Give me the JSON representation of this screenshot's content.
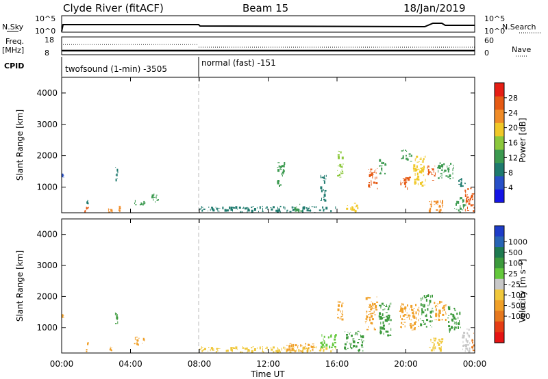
{
  "header": {
    "station": "Clyde River (fitACF)",
    "beam": "Beam 15",
    "date": "18/Jan/2019"
  },
  "status_panel": {
    "nsky_label": "N.Sky",
    "nsky_ticks": [
      "10^5",
      "10^0"
    ],
    "nsearch_label": "N.Search",
    "nsearch_ticks": [
      "10^5",
      "10^0"
    ],
    "freq_label": "Freq.",
    "freq_unit": "[MHz]",
    "freq_ticks": [
      "18",
      "8"
    ],
    "nave_label": "Nave",
    "nave_ticks": [
      "60",
      "0"
    ],
    "cpid_label": "CPID",
    "cpid_modes": [
      {
        "name": "twofsound (1-min) -3505",
        "start_hour": 0,
        "end_hour": 8
      },
      {
        "name": "normal (fast) -151",
        "start_hour": 8,
        "end_hour": 24
      }
    ]
  },
  "chart_data": [
    {
      "type": "heatmap",
      "quantity": "power",
      "ylabel": "Slant Range [km]",
      "ylim": [
        180,
        4500
      ],
      "y_ticks": [
        "1000",
        "2000",
        "3000",
        "4000"
      ],
      "x_ticks": [
        "00:00",
        "04:00",
        "08:00",
        "12:00",
        "16:00",
        "20:00",
        "00:00"
      ],
      "xlim_hours": [
        0,
        24
      ],
      "colorbar": {
        "label": "Power [dB]",
        "ticks": [
          "4",
          "8",
          "12",
          "16",
          "20",
          "24",
          "28"
        ],
        "range": [
          0,
          32
        ],
        "colors": [
          "#1414e6",
          "#2850c8",
          "#1e7a6e",
          "#3c9a50",
          "#8cc83c",
          "#f0c828",
          "#f08c28",
          "#e65a14",
          "#e61e14"
        ]
      },
      "patches": [
        {
          "t": [
            0.0,
            0.15
          ],
          "r": [
            1300,
            1450
          ],
          "power": 6
        },
        {
          "t": [
            1.3,
            1.6
          ],
          "r": [
            180,
            400
          ],
          "power": 26
        },
        {
          "t": [
            1.4,
            1.6
          ],
          "r": [
            400,
            600
          ],
          "power": 8
        },
        {
          "t": [
            2.7,
            3.0
          ],
          "r": [
            180,
            350
          ],
          "power": 22
        },
        {
          "t": [
            3.1,
            3.3
          ],
          "r": [
            1100,
            1650
          ],
          "power": 10
        },
        {
          "t": [
            3.3,
            3.5
          ],
          "r": [
            200,
            400
          ],
          "power": 24
        },
        {
          "t": [
            4.2,
            4.9
          ],
          "r": [
            400,
            600
          ],
          "power": 12
        },
        {
          "t": [
            5.2,
            5.7
          ],
          "r": [
            500,
            800
          ],
          "power": 14
        },
        {
          "t": [
            8.0,
            16.0
          ],
          "r": [
            180,
            400
          ],
          "power": 9
        },
        {
          "t": [
            12.5,
            13.0
          ],
          "r": [
            1000,
            1800
          ],
          "power": 12
        },
        {
          "t": [
            13.5,
            14.0
          ],
          "r": [
            180,
            500
          ],
          "power": 14
        },
        {
          "t": [
            15.0,
            15.4
          ],
          "r": [
            500,
            1400
          ],
          "power": 10
        },
        {
          "t": [
            16.0,
            16.4
          ],
          "r": [
            1200,
            2200
          ],
          "power": 16
        },
        {
          "t": [
            16.5,
            17.3
          ],
          "r": [
            180,
            500
          ],
          "power": 18
        },
        {
          "t": [
            17.8,
            18.4
          ],
          "r": [
            900,
            1600
          ],
          "power": 26
        },
        {
          "t": [
            18.4,
            18.9
          ],
          "r": [
            1400,
            1900
          ],
          "power": 14
        },
        {
          "t": [
            19.6,
            20.3
          ],
          "r": [
            900,
            1400
          ],
          "power": 28
        },
        {
          "t": [
            19.7,
            20.4
          ],
          "r": [
            1800,
            2200
          ],
          "power": 12
        },
        {
          "t": [
            20.4,
            21.2
          ],
          "r": [
            1000,
            2000
          ],
          "power": 18
        },
        {
          "t": [
            21.2,
            21.8
          ],
          "r": [
            1200,
            1700
          ],
          "power": 26
        },
        {
          "t": [
            21.8,
            22.8
          ],
          "r": [
            1200,
            1800
          ],
          "power": 14
        },
        {
          "t": [
            21.3,
            22.2
          ],
          "r": [
            180,
            600
          ],
          "power": 22
        },
        {
          "t": [
            22.8,
            23.5
          ],
          "r": [
            180,
            700
          ],
          "power": 12
        },
        {
          "t": [
            23.4,
            24.0
          ],
          "r": [
            180,
            1000
          ],
          "power": 28
        },
        {
          "t": [
            23.0,
            23.5
          ],
          "r": [
            1000,
            1300
          ],
          "power": 10
        }
      ]
    },
    {
      "type": "heatmap",
      "quantity": "velocity",
      "ylabel": "Slant Range [km]",
      "ylim": [
        180,
        4500
      ],
      "y_ticks": [
        "1000",
        "2000",
        "3000",
        "4000"
      ],
      "x_ticks": [
        "00:00",
        "04:00",
        "08:00",
        "12:00",
        "16:00",
        "20:00",
        "00:00"
      ],
      "xlim_hours": [
        0,
        24
      ],
      "xlabel": "Time UT",
      "colorbar": {
        "label": "Velocity [m s⁻¹]",
        "ticks": [
          "1000",
          "500",
          "100",
          "25",
          "-25",
          "-100",
          "-500",
          "-1000"
        ],
        "colors": [
          "#1e3cc8",
          "#2864b4",
          "#1e7a50",
          "#3c9a3c",
          "#64c83c",
          "#c8c8c8",
          "#f0c83c",
          "#f0a028",
          "#e6781e",
          "#e63c14",
          "#e61414"
        ]
      },
      "patches": [
        {
          "t": [
            0.0,
            0.15
          ],
          "r": [
            1300,
            1450
          ],
          "vel": -300
        },
        {
          "t": [
            1.4,
            1.6
          ],
          "r": [
            180,
            600
          ],
          "vel": -200
        },
        {
          "t": [
            2.7,
            3.0
          ],
          "r": [
            180,
            400
          ],
          "vel": -200
        },
        {
          "t": [
            3.1,
            3.3
          ],
          "r": [
            1100,
            1650
          ],
          "vel": 400
        },
        {
          "t": [
            4.2,
            4.9
          ],
          "r": [
            400,
            700
          ],
          "vel": -300
        },
        {
          "t": [
            8.0,
            16.0
          ],
          "r": [
            180,
            400
          ],
          "vel": -80
        },
        {
          "t": [
            13.0,
            15.0
          ],
          "r": [
            200,
            500
          ],
          "vel": -150
        },
        {
          "t": [
            15.0,
            16.0
          ],
          "r": [
            300,
            800
          ],
          "vel": 50
        },
        {
          "t": [
            16.0,
            16.4
          ],
          "r": [
            1200,
            1900
          ],
          "vel": -500
        },
        {
          "t": [
            16.4,
            17.6
          ],
          "r": [
            200,
            900
          ],
          "vel": 150
        },
        {
          "t": [
            17.6,
            18.4
          ],
          "r": [
            900,
            2000
          ],
          "vel": -150
        },
        {
          "t": [
            18.4,
            19.2
          ],
          "r": [
            700,
            1800
          ],
          "vel": 200
        },
        {
          "t": [
            19.6,
            20.8
          ],
          "r": [
            900,
            1800
          ],
          "vel": -200
        },
        {
          "t": [
            20.8,
            21.6
          ],
          "r": [
            1000,
            2100
          ],
          "vel": 300
        },
        {
          "t": [
            21.6,
            22.4
          ],
          "r": [
            1200,
            1900
          ],
          "vel": -150
        },
        {
          "t": [
            22.4,
            23.2
          ],
          "r": [
            800,
            1700
          ],
          "vel": 250
        },
        {
          "t": [
            21.3,
            22.2
          ],
          "r": [
            180,
            700
          ],
          "vel": -80
        },
        {
          "t": [
            23.2,
            23.8
          ],
          "r": [
            180,
            1000
          ],
          "vel": 0
        },
        {
          "t": [
            23.8,
            24.0
          ],
          "r": [
            180,
            900
          ],
          "vel": -700
        }
      ]
    }
  ]
}
